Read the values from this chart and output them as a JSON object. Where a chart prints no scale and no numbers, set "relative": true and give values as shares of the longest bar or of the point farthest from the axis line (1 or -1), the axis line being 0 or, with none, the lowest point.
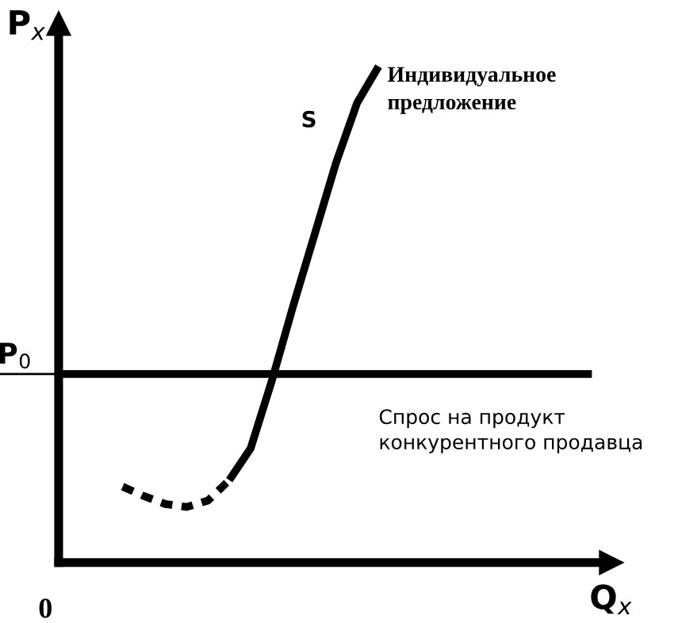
{
  "chart_data": {
    "type": "line",
    "relative": true,
    "xlabel": "Q$_{x}$",
    "ylabel": "P$_{x}$",
    "categories": [
      null,
      null,
      null,
      null,
      null,
      null,
      null,
      null,
      null,
      null,
      null,
      null,
      null,
      null,
      null,
      null,
      null,
      null,
      null,
      null,
      null,
      null,
      null,
      null,
      null,
      null
    ],
    "series": [
      {
        "color": "#000000",
        "line_style": "dashed",
        "values": [
          null,
          null,
          null,
          0.153,
          0.134,
          0.118,
          0.112,
          0.125,
          0.166,
          null,
          null,
          null,
          null,
          null,
          null,
          null,
          null,
          null,
          null,
          null,
          null,
          null,
          null,
          null,
          null,
          null
        ]
      },
      {
        "name": "S",
        "color": "#000000",
        "line_style": "solid",
        "values": [
          null,
          null,
          null,
          null,
          null,
          null,
          null,
          null,
          0.166,
          0.23,
          0.367,
          0.518,
          0.661,
          0.805,
          0.927,
          1.0,
          null,
          null,
          null,
          null,
          null,
          null,
          null,
          null,
          null,
          null
        ]
      },
      {
        "name": "Спрос на продукт конкурентного продавца",
        "color": "#000000",
        "line_style": "solid",
        "values": [
          0.38,
          0.38,
          0.38,
          0.38,
          0.38,
          0.38,
          0.38,
          0.38,
          0.38,
          0.38,
          0.38,
          0.38,
          0.38,
          0.38,
          0.38,
          0.38,
          0.38,
          0.38,
          0.38,
          0.38,
          0.38,
          0.38,
          0.38,
          0.38,
          0.38,
          0.38
        ]
      }
    ],
    "annotations": [
      "Индивидуальное предложение",
      "P$_{0}$",
      "0"
    ]
  }
}
